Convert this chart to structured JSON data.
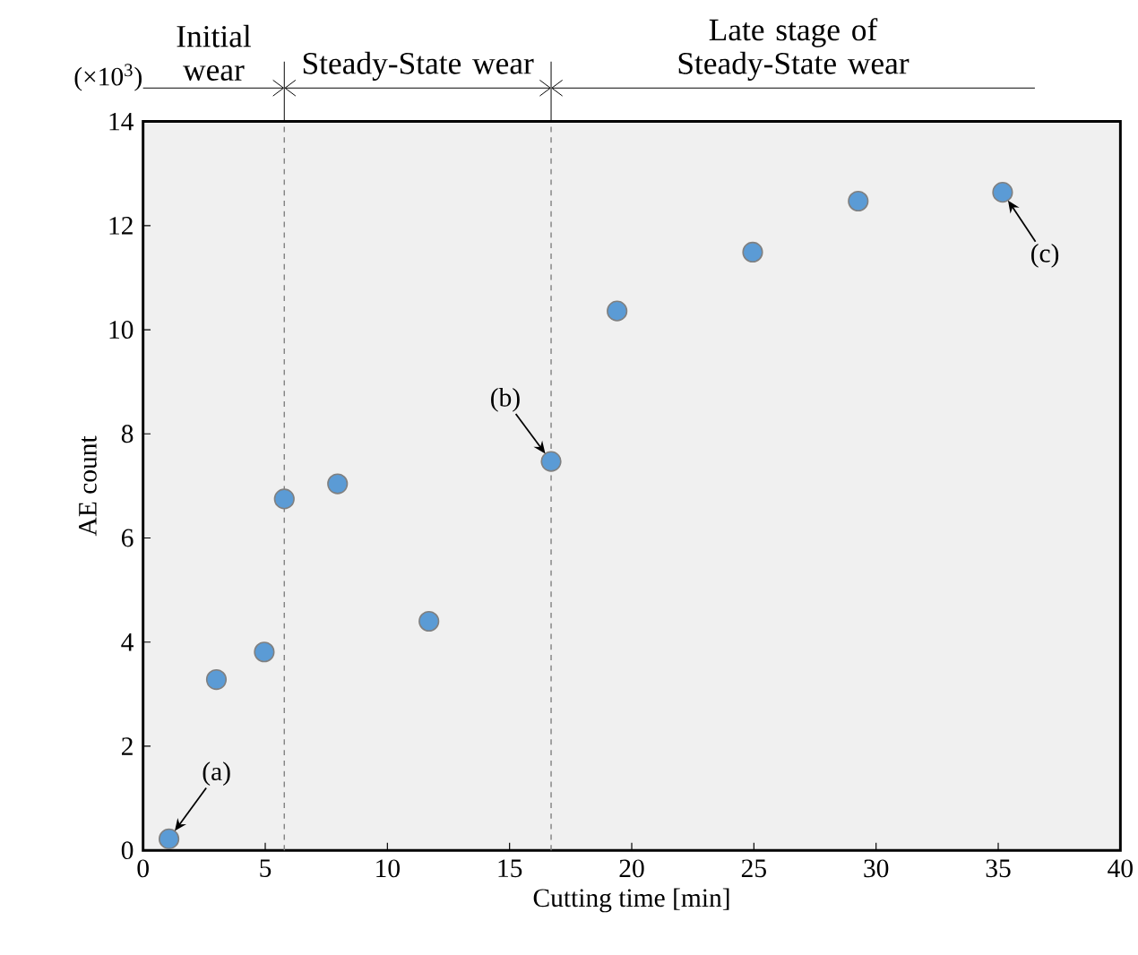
{
  "chart_data": {
    "type": "scatter",
    "xlabel": "Cutting time [min]",
    "ylabel": "AE count",
    "x": [
      1.06,
      3.0,
      4.96,
      5.78,
      7.96,
      11.7,
      16.7,
      19.4,
      24.95,
      29.27,
      35.18
    ],
    "values": [
      0.22,
      3.28,
      3.81,
      6.75,
      7.04,
      4.4,
      7.47,
      10.36,
      11.49,
      12.47,
      12.64
    ],
    "color": "#5b9bd5",
    "marker": "circle",
    "xlim": [
      0,
      40
    ],
    "ylim": [
      0,
      14
    ],
    "xticks": [
      0,
      5,
      10,
      15,
      20,
      25,
      30,
      35,
      40
    ],
    "yticks": [
      0,
      2,
      4,
      6,
      8,
      10,
      12,
      14
    ],
    "ref_lines": [
      {
        "axis": "x",
        "value": 5.78,
        "color": "#7f7f7f",
        "line_style": "dashed"
      },
      {
        "axis": "x",
        "value": 16.7,
        "color": "#7f7f7f",
        "line_style": "dashed"
      }
    ],
    "annotations": [
      "(×10$^{3}$)",
      "Initial wear",
      "Steady-State wear",
      "Late stage of Steady-State wear",
      {
        "text": "(a)",
        "x": 1.06,
        "y": 0.22
      },
      {
        "text": "(b)",
        "x": 16.7,
        "y": 7.47
      },
      {
        "text": "(c)",
        "x": 35.18,
        "y": 12.64
      }
    ]
  }
}
